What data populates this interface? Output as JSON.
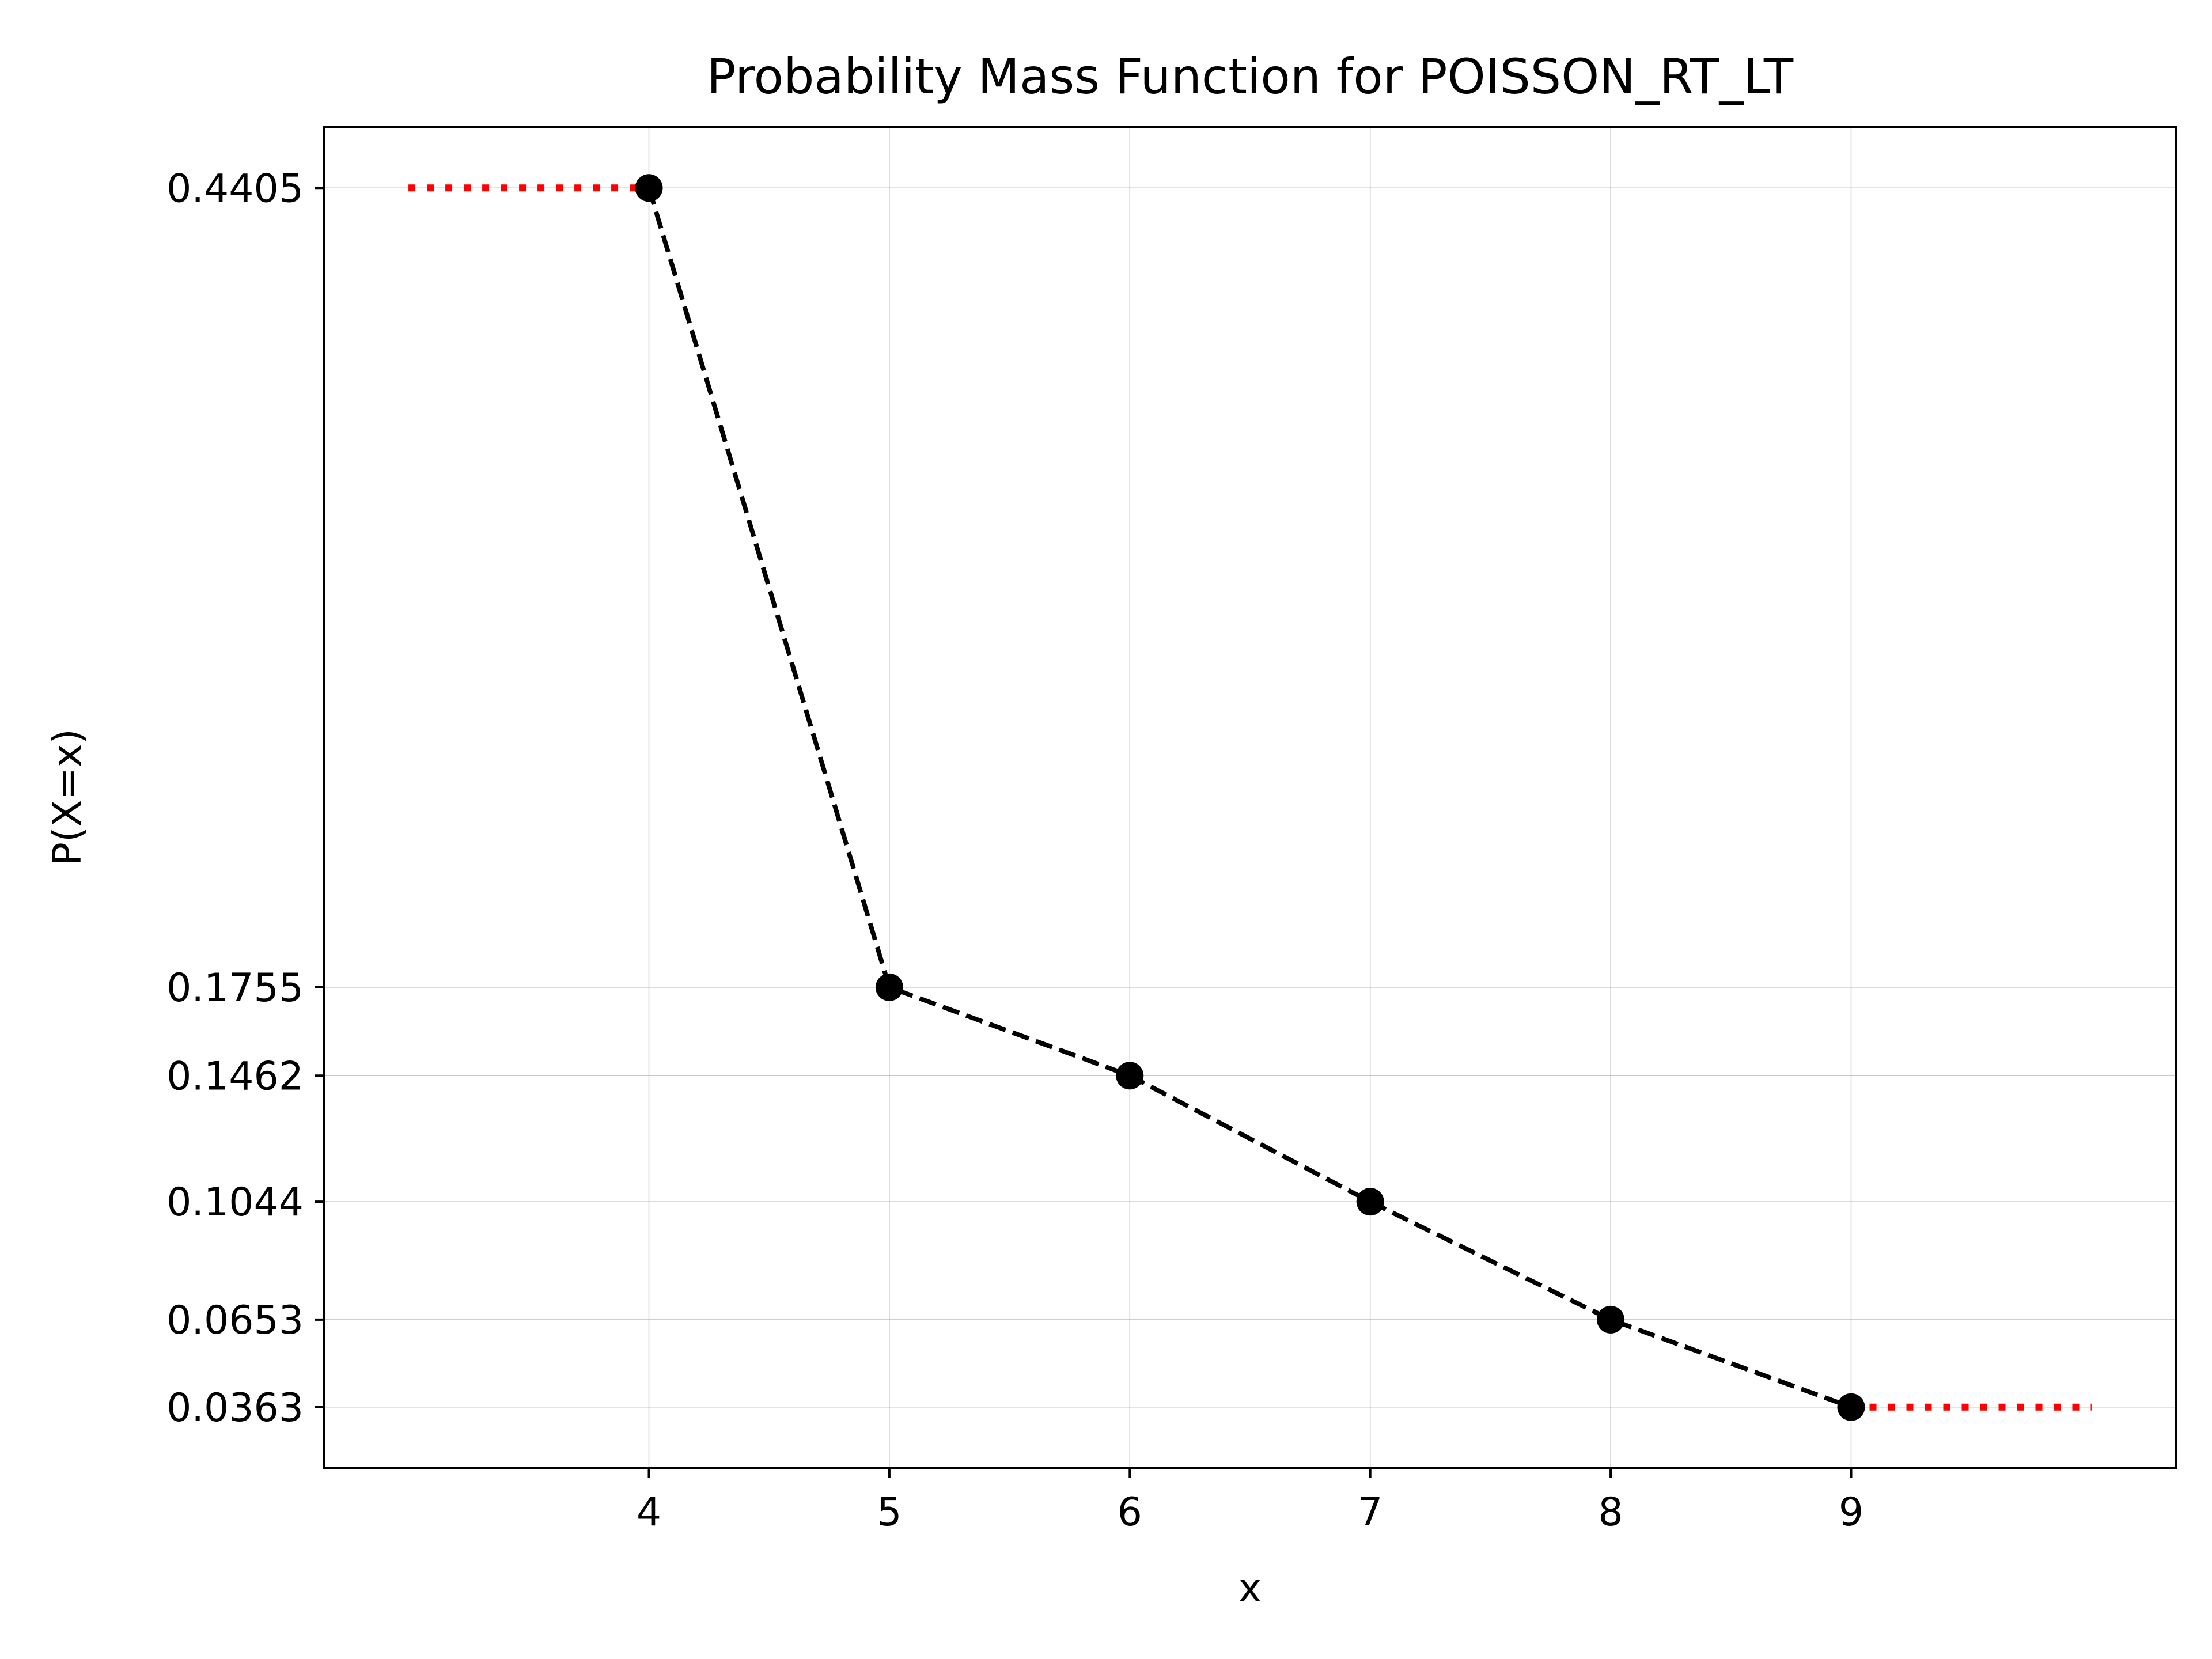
{
  "chart_data": {
    "type": "line",
    "title": "Probability Mass Function for POISSON_RT_LT",
    "xlabel": "x",
    "ylabel": "P(X=x)",
    "x_ticks": [
      "4",
      "5",
      "6",
      "7",
      "8",
      "9"
    ],
    "y_ticks": [
      "0.4405",
      "0.1755",
      "0.1462",
      "0.1044",
      "0.0653",
      "0.0363"
    ],
    "xlim": [
      2.65,
      10.35
    ],
    "ylim": [
      0.0162,
      0.4608
    ],
    "grid": true,
    "series": [
      {
        "x": [
          4,
          5,
          6,
          7,
          8,
          9
        ],
        "y": [
          0.4405,
          0.1755,
          0.1462,
          0.1044,
          0.0653,
          0.0363
        ],
        "style": "dashed",
        "marker": "circle",
        "color": "#000000"
      }
    ],
    "tail_lines": [
      {
        "x": [
          3,
          4
        ],
        "y": [
          0.4405,
          0.4405
        ],
        "style": "dotted",
        "color": "#ff0000"
      },
      {
        "x": [
          9,
          10
        ],
        "y": [
          0.0363,
          0.0363
        ],
        "style": "dotted",
        "color": "#ff0000"
      }
    ]
  }
}
